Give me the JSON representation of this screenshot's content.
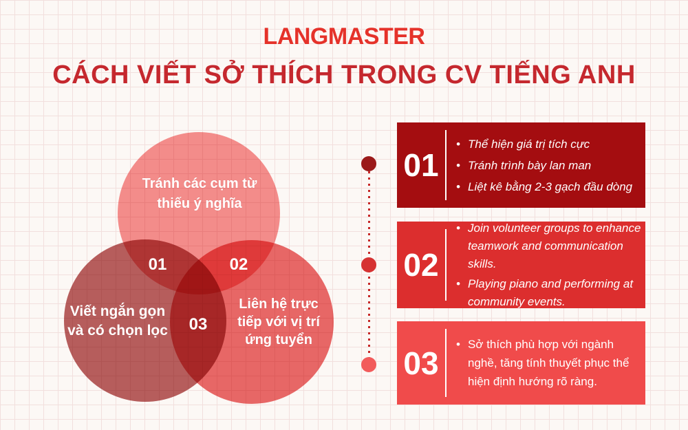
{
  "logo": "LANGMASTER",
  "title": "CÁCH VIẾT SỞ THÍCH TRONG CV TIẾNG ANH",
  "colors": {
    "background": "#FCF8F5",
    "grid_line": "#F2DFDD",
    "logo": "#E5322A",
    "title": "#C5282E",
    "venn_top_circle": "#F69090",
    "venn_bottom_left_circle": "#B86060",
    "venn_bottom_right_circle": "#EA6A6A",
    "card1_bg": "#A40D10",
    "card2_bg": "#DC2E2E",
    "card3_bg": "#F04B4B",
    "connector_dot1": "#9B1A1A",
    "connector_dot2": "#D63232",
    "connector_dot3": "#F25B5B",
    "connector_line": "#C62828",
    "text_on_red": "#FFFFFF"
  },
  "venn": {
    "numbers": [
      "01",
      "02",
      "03"
    ],
    "circles": [
      {
        "lines": [
          "Tránh các cụm từ",
          "thiếu ý nghĩa"
        ]
      },
      {
        "lines": [
          "Viết ngắn gọn",
          "và có chọn lọc"
        ]
      },
      {
        "lines": [
          "Liên hệ trực",
          "tiếp với vị trí",
          "ứng tuyển"
        ]
      }
    ]
  },
  "cards": [
    {
      "number": "01",
      "bullets": [
        "Thể hiện giá trị tích cực",
        "Tránh trình bày lan man",
        "Liệt kê bằng 2-3 gạch đầu dòng"
      ]
    },
    {
      "number": "02",
      "bullets": [
        "Join volunteer groups to enhance teamwork and communication skills.",
        "Playing piano and performing at community events."
      ]
    },
    {
      "number": "03",
      "bullets": [
        "Sở thích phù hợp với ngành nghề, tăng tính thuyết phục thể hiện định hướng rõ ràng."
      ]
    }
  ]
}
